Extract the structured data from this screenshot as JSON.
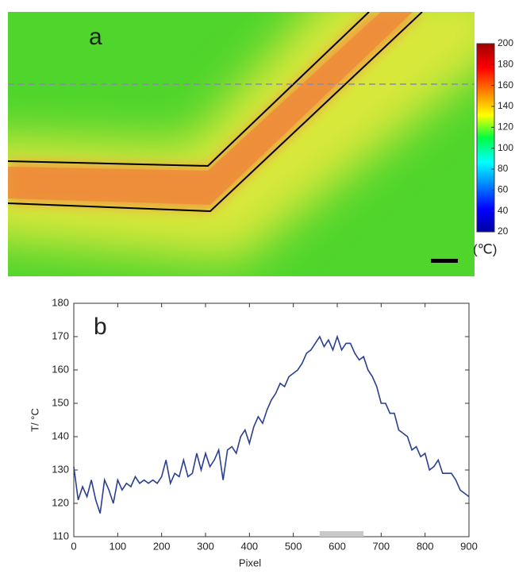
{
  "chart_data": [
    {
      "type": "heatmap",
      "label": "a",
      "colorbar": {
        "lim": [
          20,
          200
        ],
        "ticks": [
          20,
          40,
          60,
          80,
          100,
          120,
          140,
          160,
          180,
          200
        ],
        "unit": "(℃)"
      }
    },
    {
      "type": "line",
      "label": "b",
      "xlabel": "Pixel",
      "ylabel": "T/ °C",
      "color": "#2a3f8f",
      "xlim": [
        0,
        900
      ],
      "xticks": [
        0,
        100,
        200,
        300,
        400,
        500,
        600,
        700,
        800,
        900
      ],
      "ylim": [
        110,
        180
      ],
      "yticks": [
        110,
        120,
        130,
        140,
        150,
        160,
        170,
        180
      ],
      "highlight_range": [
        560,
        660
      ],
      "x": [
        0,
        10,
        20,
        30,
        40,
        50,
        60,
        70,
        80,
        90,
        100,
        110,
        120,
        130,
        140,
        150,
        160,
        170,
        180,
        190,
        200,
        210,
        220,
        230,
        240,
        250,
        260,
        270,
        280,
        290,
        300,
        310,
        320,
        330,
        340,
        350,
        360,
        370,
        380,
        390,
        400,
        410,
        420,
        430,
        440,
        450,
        460,
        470,
        480,
        490,
        500,
        510,
        520,
        530,
        540,
        550,
        560,
        570,
        580,
        590,
        600,
        610,
        620,
        630,
        640,
        650,
        660,
        670,
        680,
        690,
        700,
        710,
        720,
        730,
        740,
        750,
        760,
        770,
        780,
        790,
        800,
        810,
        820,
        830,
        840,
        850,
        860,
        870,
        880,
        890,
        900
      ],
      "values": [
        131,
        121,
        125,
        122,
        127,
        121,
        117,
        127,
        124,
        120,
        127,
        124,
        126,
        125,
        128,
        126,
        127,
        126,
        127,
        126,
        128,
        133,
        126,
        129,
        128,
        133,
        128,
        129,
        135,
        130,
        135,
        131,
        133,
        136,
        127,
        136,
        137,
        135,
        140,
        142,
        138,
        143,
        146,
        144,
        148,
        151,
        153,
        156,
        155,
        158,
        159,
        160,
        162,
        165,
        166,
        168,
        170,
        167,
        169,
        166,
        170,
        166,
        168,
        168,
        165,
        163,
        164,
        160,
        158,
        155,
        150,
        150,
        147,
        147,
        142,
        141,
        140,
        136,
        137,
        134,
        135,
        130,
        131,
        133,
        129,
        129,
        129,
        127,
        124,
        123,
        122
      ]
    }
  ]
}
